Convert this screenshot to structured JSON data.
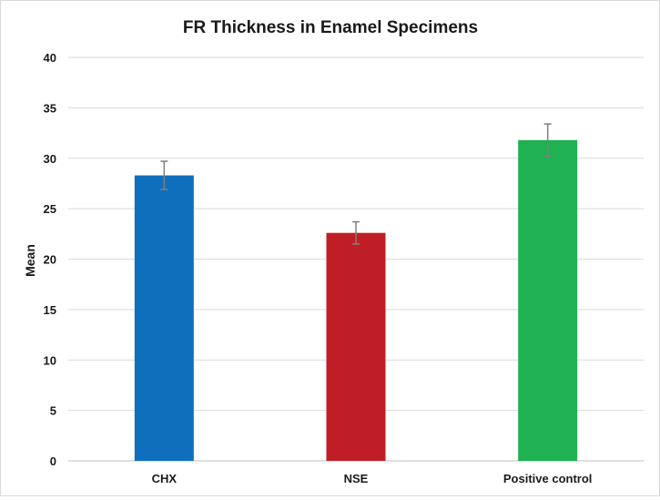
{
  "chart_data": {
    "type": "bar",
    "title": "FR Thickness in Enamel Specimens",
    "xlabel": "",
    "ylabel": "Mean",
    "categories": [
      "CHX",
      "NSE",
      "Positive control"
    ],
    "values": [
      28.3,
      22.6,
      31.8
    ],
    "error": [
      1.4,
      1.1,
      1.6
    ],
    "colors": [
      "#0f6fbd",
      "#c01e26",
      "#1fb152"
    ],
    "error_color": "#7f7f7f",
    "ylim": [
      0,
      40
    ],
    "yticks": [
      0,
      5,
      10,
      15,
      20,
      25,
      30,
      35,
      40
    ],
    "grid": true,
    "legend": "none"
  }
}
